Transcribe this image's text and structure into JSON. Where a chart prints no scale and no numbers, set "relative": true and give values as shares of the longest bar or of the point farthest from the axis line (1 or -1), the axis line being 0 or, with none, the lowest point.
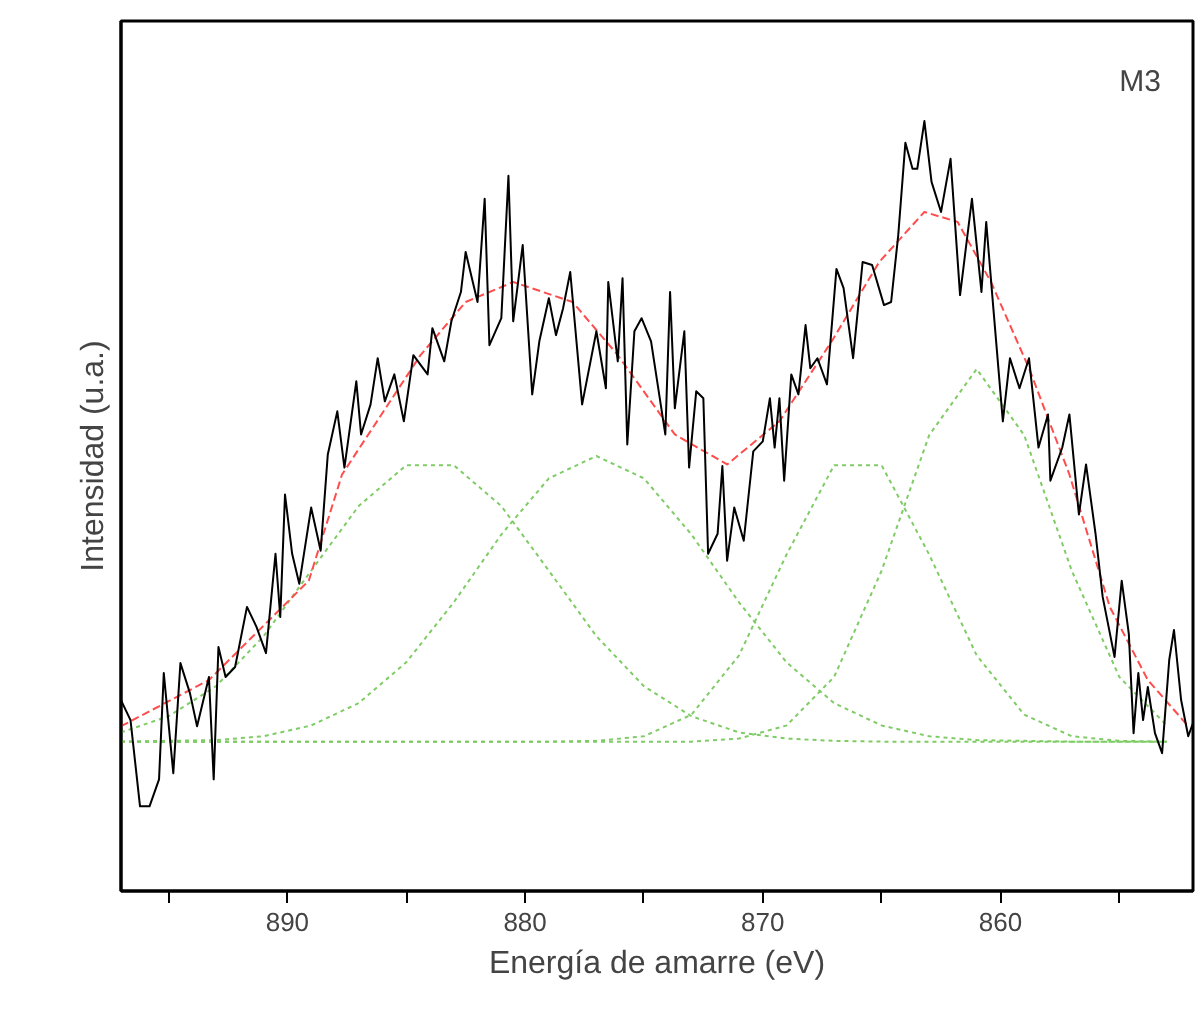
{
  "chart_data": {
    "type": "line",
    "relative": true,
    "xlabel": "Energía de amarre (eV)",
    "ylabel": "Intensidad (u.a.)",
    "annotations": [
      "M3"
    ],
    "xlim": [
      897,
      851.9
    ],
    "xticks": [
      {
        "value": 895,
        "label": null
      },
      890,
      {
        "value": 885,
        "label": null
      },
      880,
      {
        "value": 875,
        "label": null
      },
      870,
      {
        "value": 865,
        "label": null
      },
      860,
      {
        "value": 855,
        "label": null
      }
    ],
    "grid": false,
    "marker": "none",
    "series": [
      {
        "color": "#7fcc66",
        "line_style": "dotted",
        "x": [
          897,
          895,
          893,
          891,
          889,
          887,
          885,
          883,
          881,
          879,
          877,
          875,
          873,
          871,
          869,
          867,
          865,
          863,
          861,
          859,
          857,
          855,
          853
        ],
        "values": [
          0.206,
          0.227,
          0.266,
          0.331,
          0.416,
          0.5,
          0.553,
          0.553,
          0.5,
          0.416,
          0.331,
          0.266,
          0.227,
          0.206,
          0.198,
          0.195,
          0.194,
          0.194,
          0.194,
          0.194,
          0.194,
          0.194,
          0.194
        ]
      },
      {
        "color": "#7fcc66",
        "line_style": "dotted",
        "x": [
          897,
          895,
          893,
          891,
          889,
          887,
          885,
          883,
          881,
          879,
          877,
          875,
          873,
          871,
          869,
          867,
          865,
          863,
          861,
          859,
          857,
          855,
          853
        ],
        "values": [
          0.194,
          0.195,
          0.196,
          0.201,
          0.215,
          0.244,
          0.297,
          0.375,
          0.463,
          0.536,
          0.565,
          0.536,
          0.463,
          0.375,
          0.297,
          0.244,
          0.215,
          0.201,
          0.196,
          0.195,
          0.194,
          0.194,
          0.194
        ]
      },
      {
        "color": "#7fcc66",
        "line_style": "dotted",
        "x": [
          897,
          895,
          893,
          891,
          889,
          887,
          885,
          883,
          881,
          879,
          877,
          875,
          873,
          871,
          869,
          867,
          865,
          863,
          861,
          859,
          857,
          855,
          853
        ],
        "values": [
          0.194,
          0.194,
          0.194,
          0.194,
          0.194,
          0.194,
          0.194,
          0.194,
          0.194,
          0.194,
          0.195,
          0.201,
          0.229,
          0.306,
          0.437,
          0.553,
          0.553,
          0.437,
          0.306,
          0.229,
          0.201,
          0.195,
          0.194
        ]
      },
      {
        "color": "#7fcc66",
        "line_style": "dotted",
        "x": [
          897,
          895,
          893,
          891,
          889,
          887,
          885,
          883,
          881,
          879,
          877,
          875,
          873,
          871,
          869,
          867,
          865,
          863,
          861,
          859,
          857,
          855,
          853
        ],
        "values": [
          0.194,
          0.194,
          0.194,
          0.194,
          0.194,
          0.194,
          0.194,
          0.194,
          0.194,
          0.194,
          0.194,
          0.194,
          0.194,
          0.198,
          0.215,
          0.278,
          0.416,
          0.592,
          0.678,
          0.592,
          0.416,
          0.278,
          0.215
        ]
      },
      {
        "color": "#ff4d4d",
        "line_style": "dashed",
        "x": [
          897.0,
          893.3,
          889.1,
          887.7,
          884.4,
          882.5,
          880.5,
          878.0,
          876.1,
          874.1,
          873.7,
          871.5,
          869.3,
          867.1,
          865.1,
          863.2,
          861.8,
          860.4,
          858.8,
          857.1,
          855.4,
          853.8,
          852.1
        ],
        "values": [
          0.214,
          0.274,
          0.403,
          0.541,
          0.696,
          0.765,
          0.791,
          0.765,
          0.696,
          0.61,
          0.593,
          0.554,
          0.61,
          0.714,
          0.817,
          0.882,
          0.869,
          0.791,
          0.679,
          0.541,
          0.369,
          0.274,
          0.214
        ]
      },
      {
        "color": "#000000",
        "line_style": "solid",
        "x": [
          897.0,
          896.6,
          896.2,
          895.8,
          895.4,
          895.2,
          894.8,
          894.5,
          894.1,
          893.8,
          893.3,
          893.1,
          892.9,
          892.6,
          892.2,
          891.7,
          891.3,
          890.9,
          890.5,
          890.3,
          890.1,
          889.8,
          889.5,
          889.0,
          888.6,
          888.3,
          887.9,
          887.6,
          887.1,
          886.9,
          886.5,
          886.2,
          885.9,
          885.5,
          885.1,
          884.7,
          884.1,
          883.9,
          883.4,
          883.1,
          882.7,
          882.5,
          882.0,
          881.7,
          881.5,
          881.0,
          880.7,
          880.5,
          880.1,
          879.7,
          879.4,
          879.0,
          878.7,
          878.4,
          878.1,
          877.6,
          877.0,
          876.6,
          876.5,
          876.1,
          875.9,
          875.7,
          875.4,
          875.1,
          874.7,
          874.1,
          873.9,
          873.7,
          873.3,
          873.1,
          872.8,
          872.5,
          872.3,
          871.9,
          871.7,
          871.5,
          871.2,
          870.8,
          870.4,
          870.0,
          869.7,
          869.5,
          869.3,
          869.1,
          868.8,
          868.5,
          868.2,
          868.0,
          867.7,
          867.3,
          866.9,
          866.6,
          866.2,
          865.8,
          865.4,
          864.9,
          864.6,
          864.3,
          864.0,
          863.7,
          863.5,
          863.2,
          862.9,
          862.5,
          862.1,
          861.7,
          861.2,
          860.8,
          860.6,
          860.3,
          859.9,
          859.6,
          859.2,
          858.8,
          858.4,
          858.0,
          857.9,
          857.4,
          857.1,
          856.7,
          856.4,
          856.0,
          855.7,
          855.2,
          854.9,
          854.6,
          854.4,
          854.2,
          854.0,
          853.8,
          853.5,
          853.2,
          852.9,
          852.7,
          852.4,
          852.1,
          851.9
        ],
        "values": [
          0.248,
          0.222,
          0.11,
          0.11,
          0.145,
          0.283,
          0.153,
          0.296,
          0.257,
          0.214,
          0.278,
          0.145,
          0.317,
          0.278,
          0.291,
          0.369,
          0.343,
          0.309,
          0.438,
          0.356,
          0.515,
          0.438,
          0.399,
          0.498,
          0.442,
          0.567,
          0.623,
          0.55,
          0.662,
          0.593,
          0.632,
          0.692,
          0.636,
          0.671,
          0.61,
          0.696,
          0.671,
          0.731,
          0.688,
          0.74,
          0.778,
          0.83,
          0.765,
          0.899,
          0.709,
          0.744,
          0.929,
          0.74,
          0.839,
          0.645,
          0.714,
          0.77,
          0.722,
          0.757,
          0.804,
          0.632,
          0.727,
          0.653,
          0.791,
          0.688,
          0.796,
          0.58,
          0.727,
          0.744,
          0.714,
          0.593,
          0.778,
          0.627,
          0.727,
          0.55,
          0.649,
          0.64,
          0.438,
          0.464,
          0.552,
          0.429,
          0.498,
          0.455,
          0.571,
          0.584,
          0.64,
          0.576,
          0.64,
          0.533,
          0.671,
          0.645,
          0.735,
          0.679,
          0.692,
          0.658,
          0.808,
          0.783,
          0.692,
          0.817,
          0.813,
          0.761,
          0.765,
          0.852,
          0.972,
          0.938,
          0.938,
          1.0,
          0.921,
          0.882,
          0.951,
          0.774,
          0.899,
          0.778,
          0.869,
          0.757,
          0.61,
          0.692,
          0.653,
          0.692,
          0.576,
          0.619,
          0.533,
          0.576,
          0.619,
          0.489,
          0.554,
          0.464,
          0.382,
          0.304,
          0.403,
          0.334,
          0.205,
          0.283,
          0.222,
          0.265,
          0.205,
          0.179,
          0.3,
          0.339,
          0.248,
          0.201,
          0.218
        ]
      }
    ]
  }
}
